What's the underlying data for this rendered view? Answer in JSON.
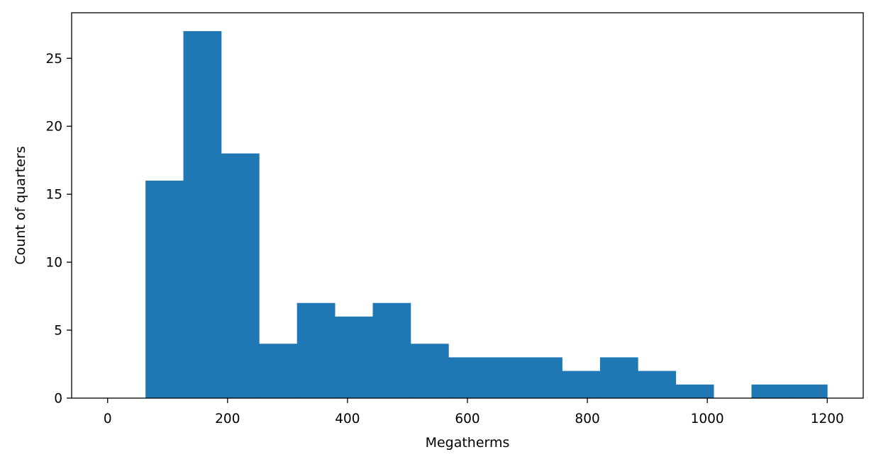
{
  "chart_data": {
    "type": "bar",
    "subtype": "histogram",
    "xlabel": "Megatherms",
    "ylabel": "Count of quarters",
    "xlim": [
      -60,
      1260
    ],
    "ylim": [
      0,
      28.35
    ],
    "xticks": [
      0,
      200,
      400,
      600,
      800,
      1000,
      1200
    ],
    "yticks": [
      0,
      5,
      10,
      15,
      20,
      25
    ],
    "bin_edges": [
      0,
      63.16,
      126.32,
      189.47,
      252.63,
      315.79,
      378.95,
      442.11,
      505.26,
      568.42,
      631.58,
      694.74,
      757.89,
      821.05,
      884.21,
      947.37,
      1010.53,
      1073.68,
      1136.84,
      1200
    ],
    "counts": [
      0,
      16,
      27,
      18,
      4,
      7,
      6,
      7,
      4,
      3,
      3,
      3,
      2,
      3,
      2,
      1,
      0,
      1,
      1
    ],
    "bar_color": "#1f77b4",
    "grid": false,
    "legend": "none"
  }
}
